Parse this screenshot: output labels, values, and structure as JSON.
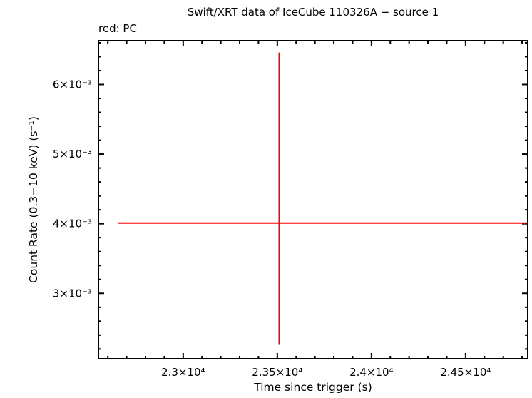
{
  "chart_data": {
    "type": "scatter",
    "title": "Swift/XRT data of IceCube 110326A − source 1",
    "annotation": "red: PC",
    "xlabel": "Time since trigger (s)",
    "ylabel": "Count Rate (0.3−10 keV) (s⁻¹)",
    "x_scale": "linear",
    "y_scale": "linear",
    "grid": false,
    "frame_color": "#000000",
    "xlim": [
      22550,
      24830
    ],
    "ylim": [
      0.00206,
      0.00663
    ],
    "xticks": [
      23000,
      23500,
      24000,
      24500
    ],
    "xtick_labels": [
      "2.3×10⁴",
      "2.35×10⁴",
      "2.4×10⁴",
      "2.45×10⁴"
    ],
    "yticks": [
      0.003,
      0.004,
      0.005,
      0.006
    ],
    "ytick_labels": [
      "3×10⁻³",
      "4×10⁻³",
      "5×10⁻³",
      "6×10⁻³"
    ],
    "x_minor_step": 100,
    "y_minor_step": 0.0002,
    "series": [
      {
        "name": "PC",
        "color": "#ff0000",
        "marker": "error-cross",
        "points": [
          {
            "x": 23510,
            "y": 0.00401,
            "x_lo": 22655,
            "x_hi": 24820,
            "y_lo": 0.00227,
            "y_hi": 0.00646
          }
        ]
      }
    ]
  }
}
